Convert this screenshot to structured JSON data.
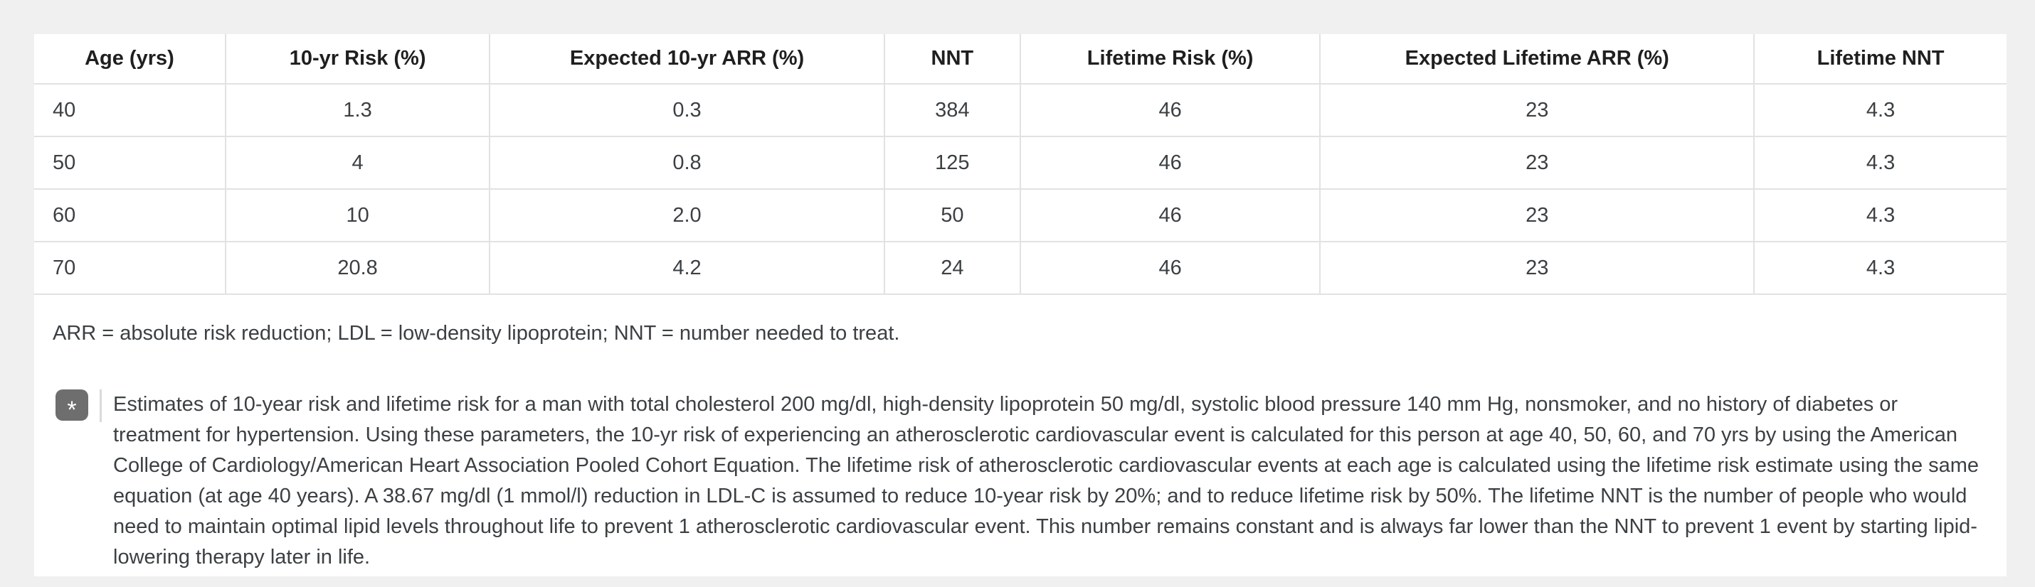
{
  "table": {
    "columns": [
      "Age (yrs)",
      "10-yr Risk (%)",
      "Expected 10-yr ARR (%)",
      "NNT",
      "Lifetime Risk (%)",
      "Expected Lifetime ARR (%)",
      "Lifetime NNT"
    ],
    "rows": [
      [
        "40",
        "1.3",
        "0.3",
        "384",
        "46",
        "23",
        "4.3"
      ],
      [
        "50",
        "4",
        "0.8",
        "125",
        "46",
        "23",
        "4.3"
      ],
      [
        "60",
        "10",
        "2.0",
        "50",
        "46",
        "23",
        "4.3"
      ],
      [
        "70",
        "20.8",
        "4.2",
        "24",
        "46",
        "23",
        "4.3"
      ]
    ]
  },
  "footnotes": {
    "abbreviations": "ARR = absolute risk reduction; LDL = low-density lipoprotein; NNT = number needed to treat.",
    "marker": "*",
    "description": "Estimates of 10-year risk and lifetime risk for a man with total cholesterol 200 mg/dl, high-density lipoprotein 50 mg/dl, systolic blood pressure 140 mm Hg, nonsmoker, and no history of diabetes or treatment for hypertension. Using these parameters, the 10-yr risk of experiencing an atherosclerotic cardiovascular event is calculated for this person at age 40, 50, 60, and 70 yrs by using the American College of Cardiology/American Heart Association Pooled Cohort Equation. The lifetime risk of atherosclerotic cardiovascular events at each age is calculated using the lifetime risk estimate using the same equation (at age 40 years). A 38.67 mg/dl (1 mmol/l) reduction in LDL-C is assumed to reduce 10-year risk by 20%; and to reduce lifetime risk by 50%. The lifetime NNT is the number of people who would need to maintain optimal lipid levels throughout life to prevent 1 atherosclerotic cardiovascular event. This number remains constant and is always far lower than the NNT to prevent 1 event by starting lipid-lowering therapy later in life."
  },
  "colors": {
    "page_background": "#f0f0f0",
    "panel_background": "#ffffff",
    "border": "#e2e2e2",
    "text": "#3c4043",
    "header_text": "#1f1f1f",
    "badge_background": "#6e6e6e",
    "badge_text": "#ffffff"
  }
}
